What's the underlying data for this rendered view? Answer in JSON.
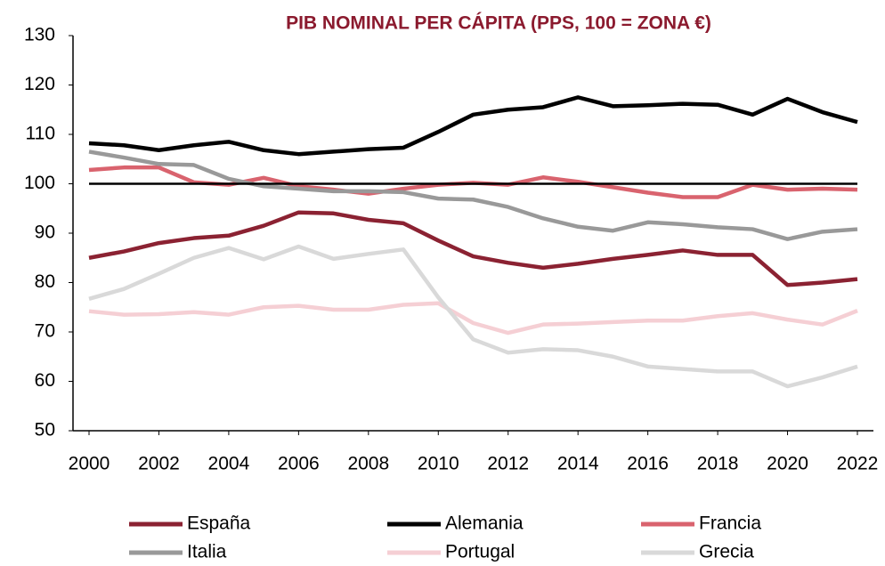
{
  "chart_data": {
    "type": "line",
    "title": "PIB NOMINAL PER CÁPITA (PPS, 100 = ZONA €)",
    "x": [
      2000,
      2001,
      2002,
      2003,
      2004,
      2005,
      2006,
      2007,
      2008,
      2009,
      2010,
      2011,
      2012,
      2013,
      2014,
      2015,
      2016,
      2017,
      2018,
      2019,
      2020,
      2021,
      2022
    ],
    "xlim": [
      2000,
      2022
    ],
    "xticks": [
      2000,
      2002,
      2004,
      2006,
      2008,
      2010,
      2012,
      2014,
      2016,
      2018,
      2020,
      2022
    ],
    "ylim": [
      50,
      130
    ],
    "yticks": [
      50,
      60,
      70,
      80,
      90,
      100,
      110,
      120,
      130
    ],
    "reference_line": 100,
    "series": [
      {
        "name": "España",
        "color": "#8b2232",
        "values": [
          85,
          86.3,
          88,
          89,
          89.5,
          91.5,
          94.2,
          94,
          92.7,
          92,
          88.5,
          85.3,
          84,
          83,
          83.8,
          84.8,
          85.6,
          86.5,
          85.6,
          85.6,
          79.5,
          80,
          80.7
        ]
      },
      {
        "name": "Alemania",
        "color": "#000000",
        "values": [
          108.2,
          107.8,
          106.8,
          107.8,
          108.5,
          106.8,
          106,
          106.5,
          107,
          107.3,
          110.5,
          114,
          115,
          115.5,
          117.5,
          115.7,
          115.9,
          116.2,
          116,
          114,
          117.2,
          114.5,
          112.5
        ]
      },
      {
        "name": "Francia",
        "color": "#d9636e",
        "values": [
          102.8,
          103.3,
          103.3,
          100.3,
          99.8,
          101.2,
          99.5,
          98.8,
          98,
          99,
          99.8,
          100.2,
          99.8,
          101.3,
          100.4,
          99.3,
          98.2,
          97.3,
          97.3,
          99.8,
          98.8,
          99,
          98.8
        ]
      },
      {
        "name": "Italia",
        "color": "#999999",
        "values": [
          106.5,
          105.3,
          104,
          103.8,
          101,
          99.5,
          99,
          98.5,
          98.5,
          98.3,
          97,
          96.8,
          95.3,
          93,
          91.3,
          90.5,
          92.2,
          91.8,
          91.2,
          90.8,
          88.8,
          90.3,
          90.8
        ]
      },
      {
        "name": "Portugal",
        "color": "#f5cfd4",
        "values": [
          74.2,
          73.5,
          73.6,
          74,
          73.5,
          75,
          75.3,
          74.5,
          74.5,
          75.5,
          75.8,
          71.8,
          69.8,
          71.5,
          71.7,
          72,
          72.3,
          72.3,
          73.2,
          73.8,
          72.5,
          71.5,
          74.3
        ]
      },
      {
        "name": "Grecia",
        "color": "#d9d9d9",
        "values": [
          76.7,
          78.7,
          81.8,
          85,
          87,
          84.7,
          87.3,
          84.8,
          85.8,
          86.7,
          77,
          68.5,
          65.8,
          66.5,
          66.3,
          65,
          63,
          62.5,
          62,
          62,
          59,
          60.8,
          63
        ]
      }
    ]
  }
}
